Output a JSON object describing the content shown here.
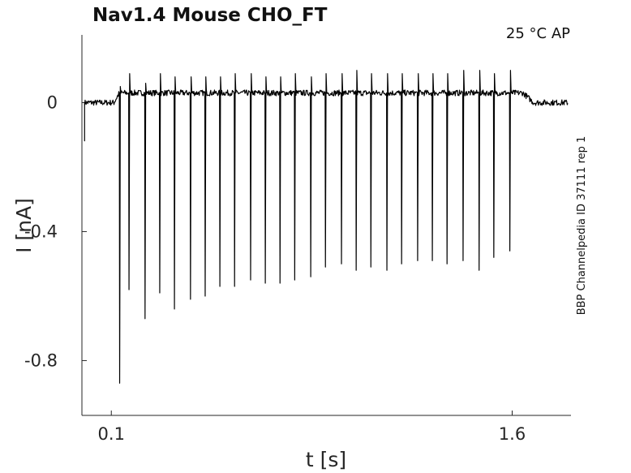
{
  "chart_data": {
    "type": "line",
    "title": "Nav1.4  Mouse  CHO_FT",
    "condition_label": "25 °C  AP",
    "source_label": "BBP Channelpedia ID 37111 rep 1",
    "xlabel": "t [s]",
    "ylabel": "I [nA]",
    "xlim": [
      -0.01,
      1.82
    ],
    "ylim": [
      -0.97,
      0.21
    ],
    "x_ticks": [
      0.1,
      1.6
    ],
    "x_tick_labels": [
      "0.1",
      "1.6"
    ],
    "y_ticks": [
      0,
      -0.4,
      -0.8
    ],
    "y_tick_labels": [
      "0",
      "-0.4",
      "-0.8"
    ],
    "grid": false,
    "color": "#000000",
    "baseline_current": 0.0,
    "stimulated_baseline_current": 0.03,
    "stimulus_window": [
      0.11,
      1.64
    ],
    "series": [
      {
        "spike_times": [
          0.13,
          0.165,
          0.225,
          0.28,
          0.335,
          0.395,
          0.45,
          0.505,
          0.56,
          0.62,
          0.675,
          0.73,
          0.785,
          0.845,
          0.9,
          0.96,
          1.015,
          1.07,
          1.13,
          1.185,
          1.245,
          1.3,
          1.355,
          1.415,
          1.475,
          1.53,
          1.59
        ],
        "peak_currents": [
          -0.87,
          -0.58,
          -0.67,
          -0.59,
          -0.64,
          -0.61,
          -0.6,
          -0.57,
          -0.57,
          -0.55,
          -0.56,
          -0.56,
          -0.55,
          -0.54,
          -0.51,
          -0.5,
          -0.52,
          -0.51,
          -0.52,
          -0.5,
          -0.49,
          -0.49,
          -0.5,
          -0.49,
          -0.52,
          -0.48,
          -0.46
        ],
        "overshoot_currents": [
          0.05,
          0.09,
          0.06,
          0.09,
          0.08,
          0.08,
          0.08,
          0.08,
          0.09,
          0.09,
          0.08,
          0.08,
          0.09,
          0.08,
          0.09,
          0.09,
          0.1,
          0.09,
          0.09,
          0.09,
          0.09,
          0.09,
          0.09,
          0.1,
          0.1,
          0.09,
          0.1
        ]
      }
    ]
  }
}
